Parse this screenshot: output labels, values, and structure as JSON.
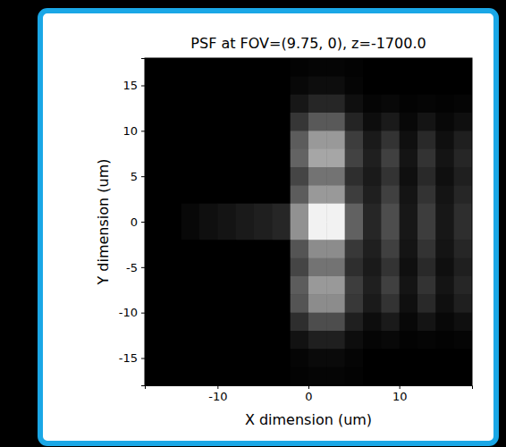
{
  "chart_data": {
    "type": "heatmap",
    "title": "PSF at FOV=(9.75, 0), z=-1700.0",
    "x_label": "X dimension (um)",
    "y_label": "Y dimension (um)",
    "xlim": [
      -18,
      18
    ],
    "ylim": [
      -18,
      18
    ],
    "xticks": [
      -10,
      0,
      10
    ],
    "yticks": [
      -15,
      -10,
      -5,
      0,
      5,
      10,
      15
    ],
    "zlim": [
      0,
      1
    ],
    "color": "gray",
    "x": [
      -17,
      -15,
      -13,
      -11,
      -9,
      -7,
      -5,
      -3,
      -1,
      1,
      3,
      5,
      7,
      9,
      11,
      13,
      15,
      17
    ],
    "y": [
      17,
      15,
      13,
      11,
      9,
      7,
      5,
      3,
      1,
      -1,
      -3,
      -5,
      -7,
      -9,
      -11,
      -13,
      -15,
      -17
    ],
    "cells": [
      [
        0,
        0,
        0,
        0,
        0,
        0,
        0,
        0,
        0.01,
        0.02,
        0.02,
        0.01,
        0,
        0,
        0,
        0,
        0,
        0
      ],
      [
        0,
        0,
        0,
        0,
        0,
        0,
        0,
        0,
        0.03,
        0.05,
        0.05,
        0.02,
        0,
        0,
        0,
        0,
        0,
        0
      ],
      [
        0,
        0,
        0,
        0,
        0,
        0,
        0,
        0,
        0.09,
        0.15,
        0.15,
        0.06,
        0.02,
        0.03,
        0.01,
        0.02,
        0.01,
        0.02
      ],
      [
        0,
        0,
        0,
        0,
        0,
        0,
        0,
        0,
        0.21,
        0.35,
        0.35,
        0.14,
        0.05,
        0.1,
        0.03,
        0.08,
        0.03,
        0.06
      ],
      [
        0,
        0,
        0,
        0,
        0,
        0,
        0,
        0,
        0.36,
        0.6,
        0.6,
        0.24,
        0.1,
        0.2,
        0.06,
        0.16,
        0.06,
        0.12
      ],
      [
        0,
        0,
        0,
        0,
        0,
        0,
        0,
        0,
        0.39,
        0.65,
        0.65,
        0.26,
        0.12,
        0.25,
        0.08,
        0.2,
        0.08,
        0.15
      ],
      [
        0,
        0,
        0,
        0,
        0,
        0,
        0,
        0,
        0.27,
        0.45,
        0.45,
        0.18,
        0.1,
        0.2,
        0.06,
        0.16,
        0.06,
        0.12
      ],
      [
        0,
        0,
        0,
        0,
        0,
        0,
        0,
        0,
        0.36,
        0.6,
        0.6,
        0.24,
        0.12,
        0.25,
        0.08,
        0.2,
        0.08,
        0.15
      ],
      [
        0,
        0,
        0.03,
        0.06,
        0.08,
        0.1,
        0.12,
        0.15,
        0.57,
        0.95,
        0.95,
        0.38,
        0.15,
        0.3,
        0.09,
        0.24,
        0.09,
        0.18
      ],
      [
        0,
        0,
        0.03,
        0.06,
        0.08,
        0.1,
        0.12,
        0.15,
        0.57,
        0.95,
        0.95,
        0.38,
        0.15,
        0.3,
        0.09,
        0.24,
        0.09,
        0.18
      ],
      [
        0,
        0,
        0,
        0,
        0,
        0,
        0,
        0,
        0.33,
        0.55,
        0.55,
        0.22,
        0.12,
        0.25,
        0.08,
        0.2,
        0.08,
        0.15
      ],
      [
        0,
        0,
        0,
        0,
        0,
        0,
        0,
        0,
        0.27,
        0.45,
        0.45,
        0.18,
        0.1,
        0.2,
        0.06,
        0.16,
        0.06,
        0.12
      ],
      [
        0,
        0,
        0,
        0,
        0,
        0,
        0,
        0,
        0.36,
        0.6,
        0.6,
        0.24,
        0.12,
        0.25,
        0.08,
        0.2,
        0.08,
        0.15
      ],
      [
        0,
        0,
        0,
        0,
        0,
        0,
        0,
        0,
        0.33,
        0.55,
        0.55,
        0.22,
        0.1,
        0.2,
        0.06,
        0.16,
        0.06,
        0.12
      ],
      [
        0,
        0,
        0,
        0,
        0,
        0,
        0,
        0,
        0.18,
        0.3,
        0.3,
        0.12,
        0.05,
        0.1,
        0.03,
        0.08,
        0.03,
        0.06
      ],
      [
        0,
        0,
        0,
        0,
        0,
        0,
        0,
        0,
        0.07,
        0.12,
        0.12,
        0.05,
        0.02,
        0.03,
        0.01,
        0.02,
        0.01,
        0.02
      ],
      [
        0,
        0,
        0,
        0,
        0,
        0,
        0,
        0,
        0.02,
        0.04,
        0.04,
        0.02,
        0,
        0,
        0,
        0,
        0,
        0
      ],
      [
        0,
        0,
        0,
        0,
        0,
        0,
        0,
        0,
        0.01,
        0.02,
        0.02,
        0.01,
        0,
        0,
        0,
        0,
        0,
        0
      ]
    ]
  }
}
